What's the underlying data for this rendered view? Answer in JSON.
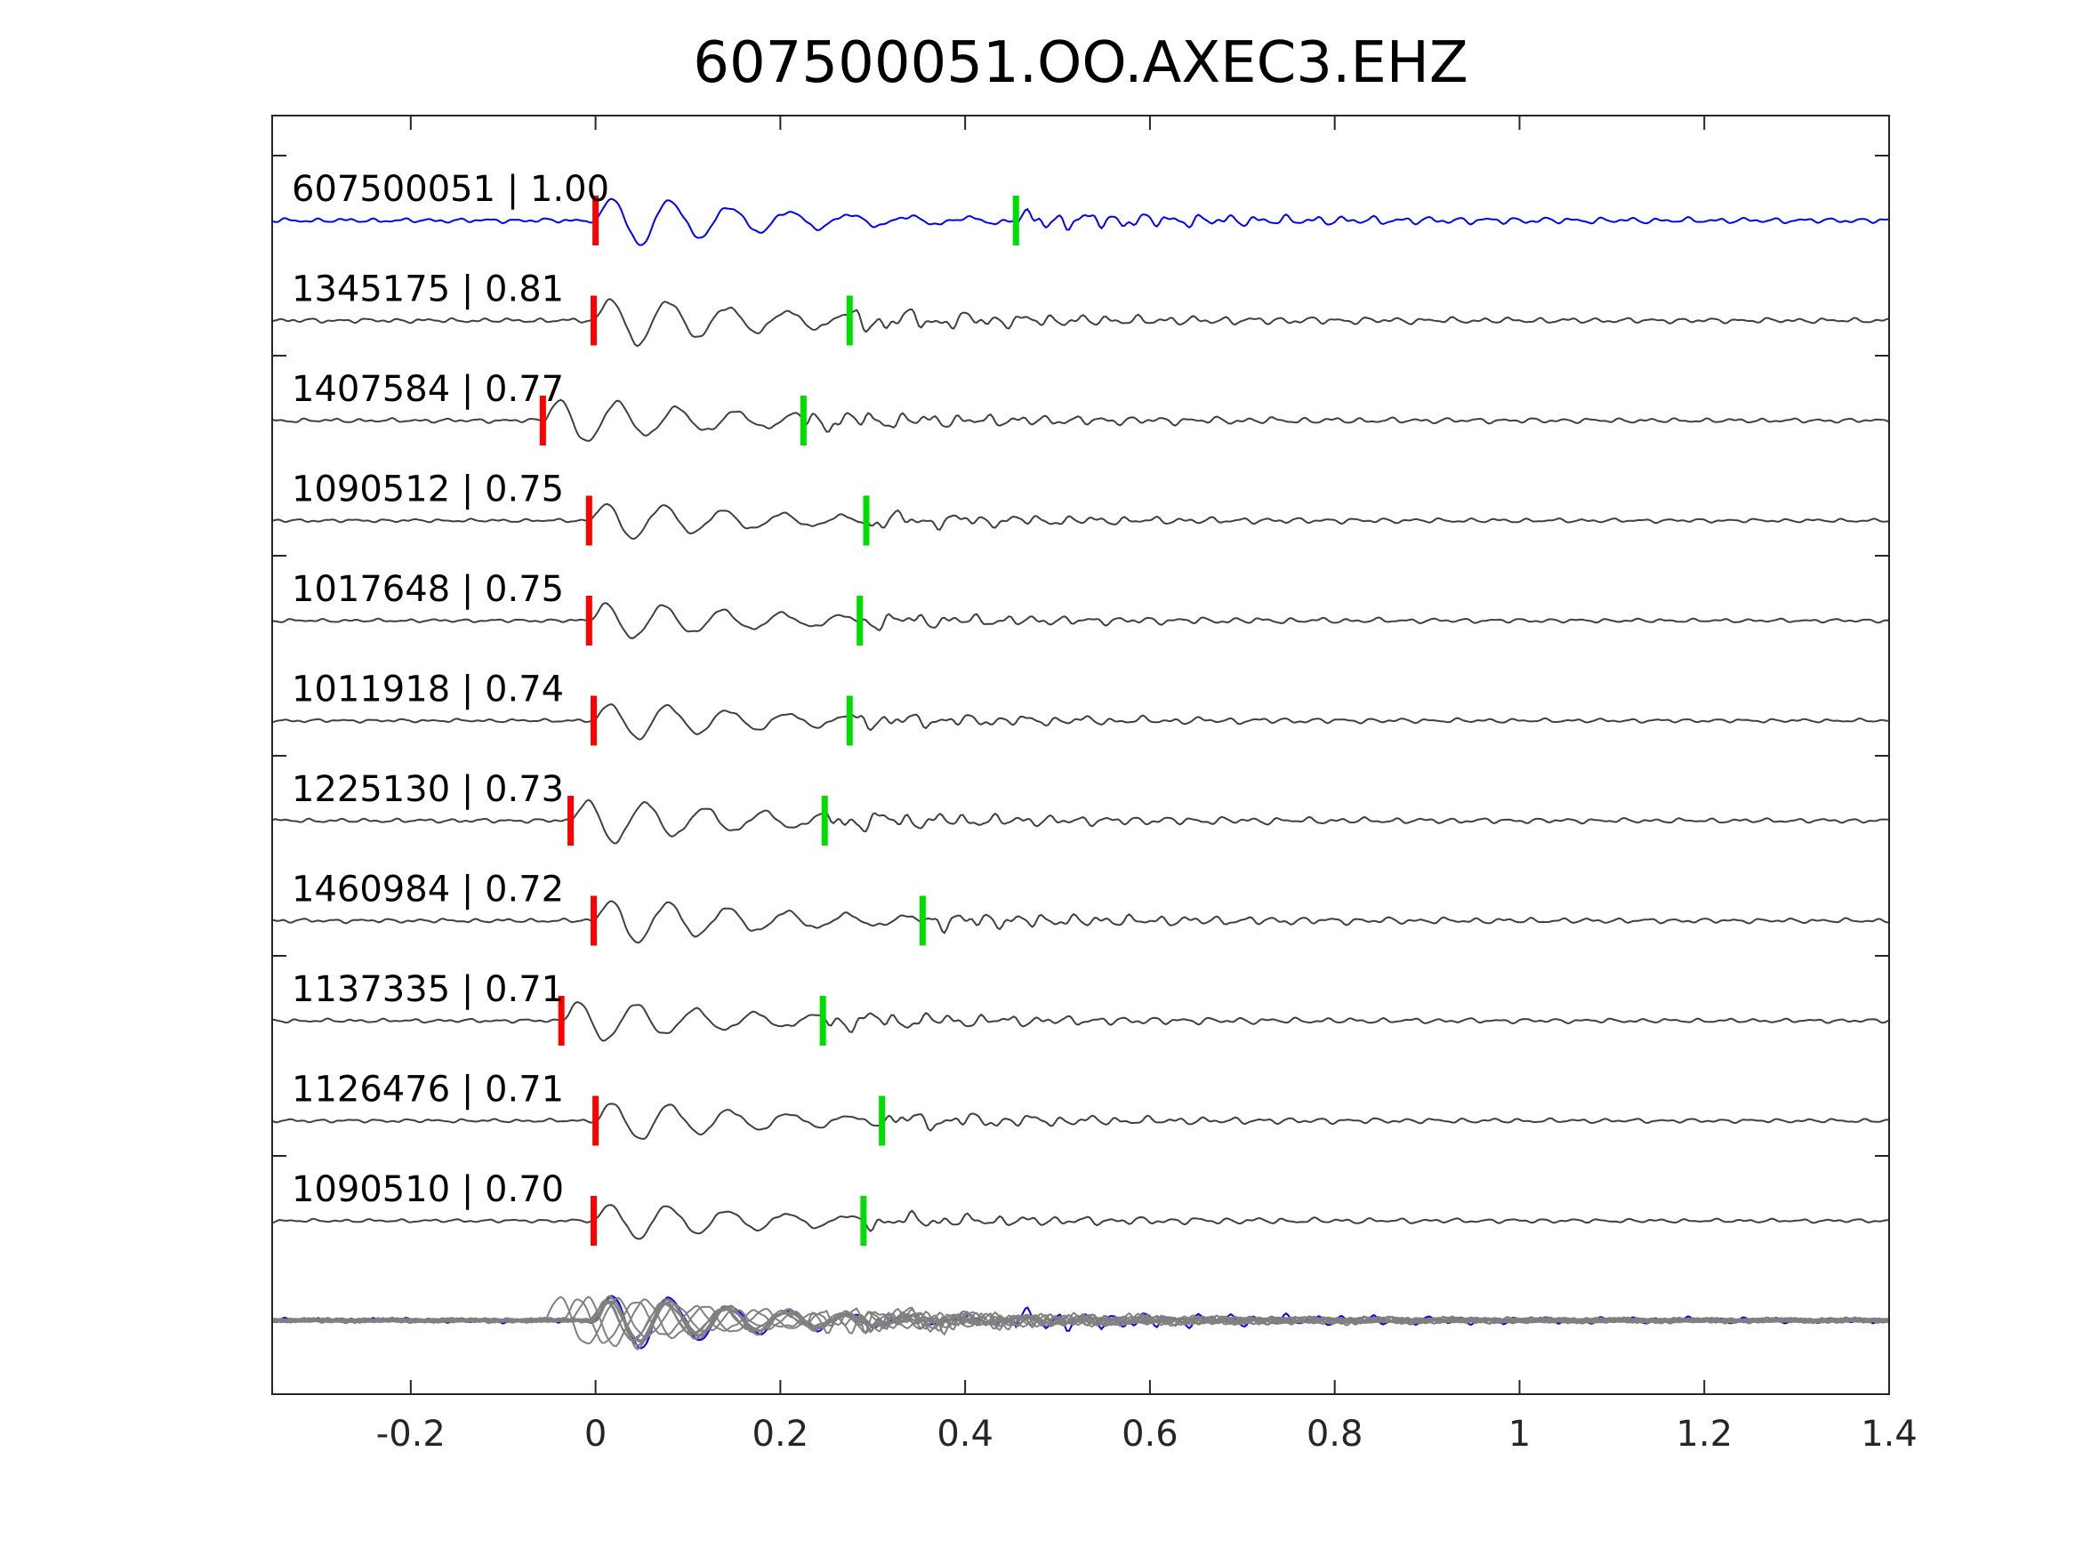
{
  "chart_data": {
    "type": "line",
    "title": "607500051.OO.AXEC3.EHZ",
    "xlabel": "",
    "ylabel": "",
    "xlim": [
      -0.35,
      1.4
    ],
    "x_ticks": [
      -0.2,
      0,
      0.2,
      0.4,
      0.6,
      0.8,
      1,
      1.2,
      1.4
    ],
    "x_tick_labels": [
      "-0.2",
      "0",
      "0.2",
      "0.4",
      "0.6",
      "0.8",
      "1",
      "1.2",
      "1.4"
    ],
    "grid": false,
    "legend": "none",
    "colors": {
      "reference": "#0000ff",
      "trace": "#404040",
      "stack": "#808080",
      "p_pick": "#ff0000",
      "s_pick": "#00dd00",
      "axes": "#262626"
    },
    "series": [
      {
        "label": "607500051 | 1.00",
        "p_pick": 0.0,
        "s_pick": 0.455,
        "amp": 1.2
      },
      {
        "label": "1345175 | 0.81",
        "p_pick": -0.002,
        "s_pick": 0.275,
        "amp": 1.2
      },
      {
        "label": "1407584 | 0.77",
        "p_pick": -0.057,
        "s_pick": 0.225,
        "amp": 1.1
      },
      {
        "label": "1090512 | 0.75",
        "p_pick": -0.007,
        "s_pick": 0.293,
        "amp": 0.9
      },
      {
        "label": "1017648 | 0.75",
        "p_pick": -0.007,
        "s_pick": 0.286,
        "amp": 0.9
      },
      {
        "label": "1011918 | 0.74",
        "p_pick": -0.002,
        "s_pick": 0.275,
        "amp": 0.9
      },
      {
        "label": "1225130 | 0.73",
        "p_pick": -0.027,
        "s_pick": 0.248,
        "amp": 1.1
      },
      {
        "label": "1460984 | 0.72",
        "p_pick": -0.002,
        "s_pick": 0.354,
        "amp": 1.1
      },
      {
        "label": "1137335 | 0.71",
        "p_pick": -0.037,
        "s_pick": 0.246,
        "amp": 1.0
      },
      {
        "label": "1126476 | 0.71",
        "p_pick": 0.0,
        "s_pick": 0.31,
        "amp": 0.95
      },
      {
        "label": "1090510 | 0.70",
        "p_pick": -0.002,
        "s_pick": 0.29,
        "amp": 0.9
      }
    ],
    "stack_row": {
      "traces": 11,
      "includes_reference": true
    }
  }
}
